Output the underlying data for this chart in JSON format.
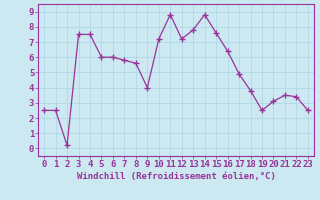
{
  "x": [
    0,
    1,
    2,
    3,
    4,
    5,
    6,
    7,
    8,
    9,
    10,
    11,
    12,
    13,
    14,
    15,
    16,
    17,
    18,
    19,
    20,
    21,
    22,
    23
  ],
  "y": [
    2.5,
    2.5,
    0.2,
    7.5,
    7.5,
    6.0,
    6.0,
    5.8,
    5.6,
    4.0,
    7.2,
    8.8,
    7.2,
    7.8,
    8.8,
    7.6,
    6.4,
    4.9,
    3.8,
    2.5,
    3.1,
    3.5,
    3.4,
    2.5
  ],
  "line_color": "#993399",
  "marker": "+",
  "markersize": 4,
  "linewidth": 0.9,
  "markeredgewidth": 1.0,
  "xlabel": "Windchill (Refroidissement éolien,°C)",
  "xlim": [
    -0.5,
    23.5
  ],
  "ylim": [
    -0.5,
    9.5
  ],
  "yticks": [
    0,
    1,
    2,
    3,
    4,
    5,
    6,
    7,
    8,
    9
  ],
  "xticks": [
    0,
    1,
    2,
    3,
    4,
    5,
    6,
    7,
    8,
    9,
    10,
    11,
    12,
    13,
    14,
    15,
    16,
    17,
    18,
    19,
    20,
    21,
    22,
    23
  ],
  "bg_color": "#cce8f0",
  "grid_color": "#b0d8e8",
  "tick_color": "#993399",
  "label_color": "#993399",
  "xlabel_fontsize": 6.5,
  "tick_fontsize": 6.5,
  "label_fontweight": "bold",
  "spine_color": "#993399"
}
